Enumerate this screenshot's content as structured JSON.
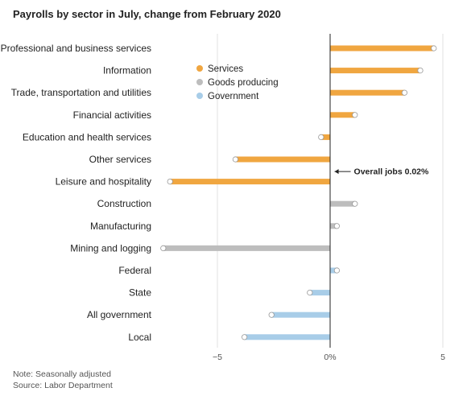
{
  "chart_data": {
    "type": "bar",
    "orientation": "horizontal",
    "title": "Payrolls by sector in July, change from February 2020",
    "unit": "%",
    "categories": [
      "Professional and business services",
      "Information",
      "Trade, transportation and utilities",
      "Financial activities",
      "Education and health services",
      "Other services",
      "Leisure and hospitality",
      "Construction",
      "Manufacturing",
      "Mining and logging",
      "Federal",
      "State",
      "All government",
      "Local"
    ],
    "values": [
      4.6,
      4.0,
      3.3,
      1.1,
      -0.4,
      -4.2,
      -7.1,
      1.1,
      0.3,
      -7.4,
      0.3,
      -0.9,
      -2.6,
      -3.8
    ],
    "groups": [
      "Services",
      "Services",
      "Services",
      "Services",
      "Services",
      "Services",
      "Services",
      "Goods producing",
      "Goods producing",
      "Goods producing",
      "Government",
      "Government",
      "Government",
      "Government"
    ],
    "legend": [
      {
        "name": "Services",
        "color": "#f0a640"
      },
      {
        "name": "Goods producing",
        "color": "#bdbdbd"
      },
      {
        "name": "Government",
        "color": "#a8cde8"
      }
    ],
    "xlim": [
      -7.5,
      5.0
    ],
    "xticks": [
      {
        "value": -5,
        "label": "−5"
      },
      {
        "value": 0,
        "label": "0%"
      },
      {
        "value": 5,
        "label": "5"
      }
    ],
    "annotation": {
      "text": "Overall jobs 0.02%",
      "value": 0.02,
      "after_category_index": 5
    },
    "grid": true,
    "legend_position": "top-center"
  },
  "footer": {
    "note": "Note: Seasonally adjusted",
    "source": "Source: Labor Department"
  }
}
